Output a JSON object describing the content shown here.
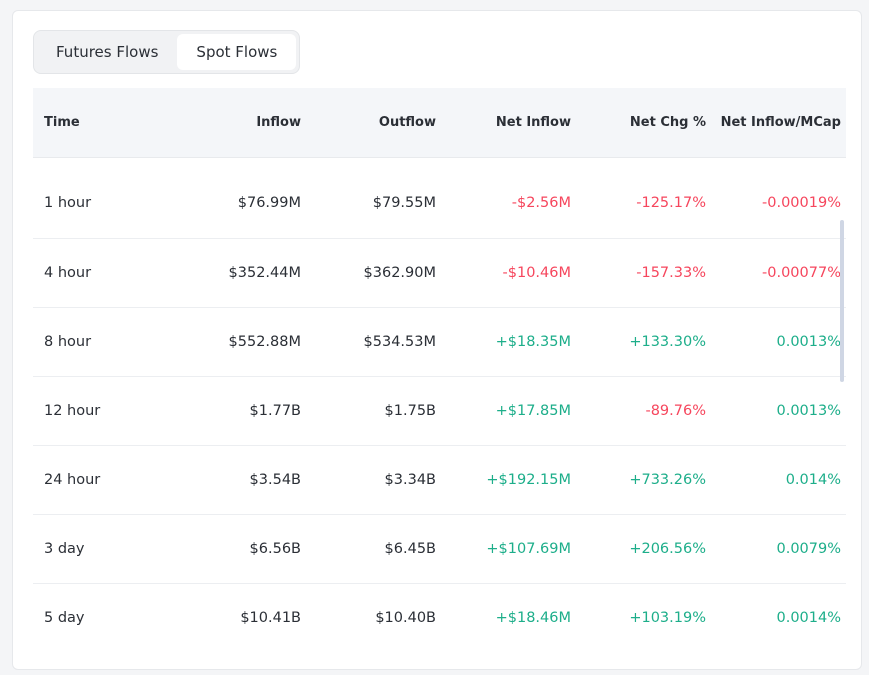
{
  "tabs": [
    {
      "label": "Futures Flows",
      "active": false
    },
    {
      "label": "Spot Flows",
      "active": true
    }
  ],
  "columns": {
    "time": "Time",
    "inflow": "Inflow",
    "outflow": "Outflow",
    "net_inflow": "Net Inflow",
    "net_chg": "Net Chg %",
    "net_inflow_mcap": "Net Inflow/MCap"
  },
  "rows": [
    {
      "time": "1 hour",
      "inflow": "$76.99M",
      "outflow": "$79.55M",
      "net_inflow": "-$2.56M",
      "net_chg": "-125.17%",
      "net_inflow_mcap": "-0.00019%"
    },
    {
      "time": "4 hour",
      "inflow": "$352.44M",
      "outflow": "$362.90M",
      "net_inflow": "-$10.46M",
      "net_chg": "-157.33%",
      "net_inflow_mcap": "-0.00077%"
    },
    {
      "time": "8 hour",
      "inflow": "$552.88M",
      "outflow": "$534.53M",
      "net_inflow": "+$18.35M",
      "net_chg": "+133.30%",
      "net_inflow_mcap": "0.0013%"
    },
    {
      "time": "12 hour",
      "inflow": "$1.77B",
      "outflow": "$1.75B",
      "net_inflow": "+$17.85M",
      "net_chg": "-89.76%",
      "net_inflow_mcap": "0.0013%"
    },
    {
      "time": "24 hour",
      "inflow": "$3.54B",
      "outflow": "$3.34B",
      "net_inflow": "+$192.15M",
      "net_chg": "+733.26%",
      "net_inflow_mcap": "0.014%"
    },
    {
      "time": "3 day",
      "inflow": "$6.56B",
      "outflow": "$6.45B",
      "net_inflow": "+$107.69M",
      "net_chg": "+206.56%",
      "net_inflow_mcap": "0.0079%"
    },
    {
      "time": "5 day",
      "inflow": "$10.41B",
      "outflow": "$10.40B",
      "net_inflow": "+$18.46M",
      "net_chg": "+103.19%",
      "net_inflow_mcap": "0.0014%"
    }
  ],
  "colors": {
    "negative": "#f6465d",
    "positive": "#1dae8a"
  }
}
